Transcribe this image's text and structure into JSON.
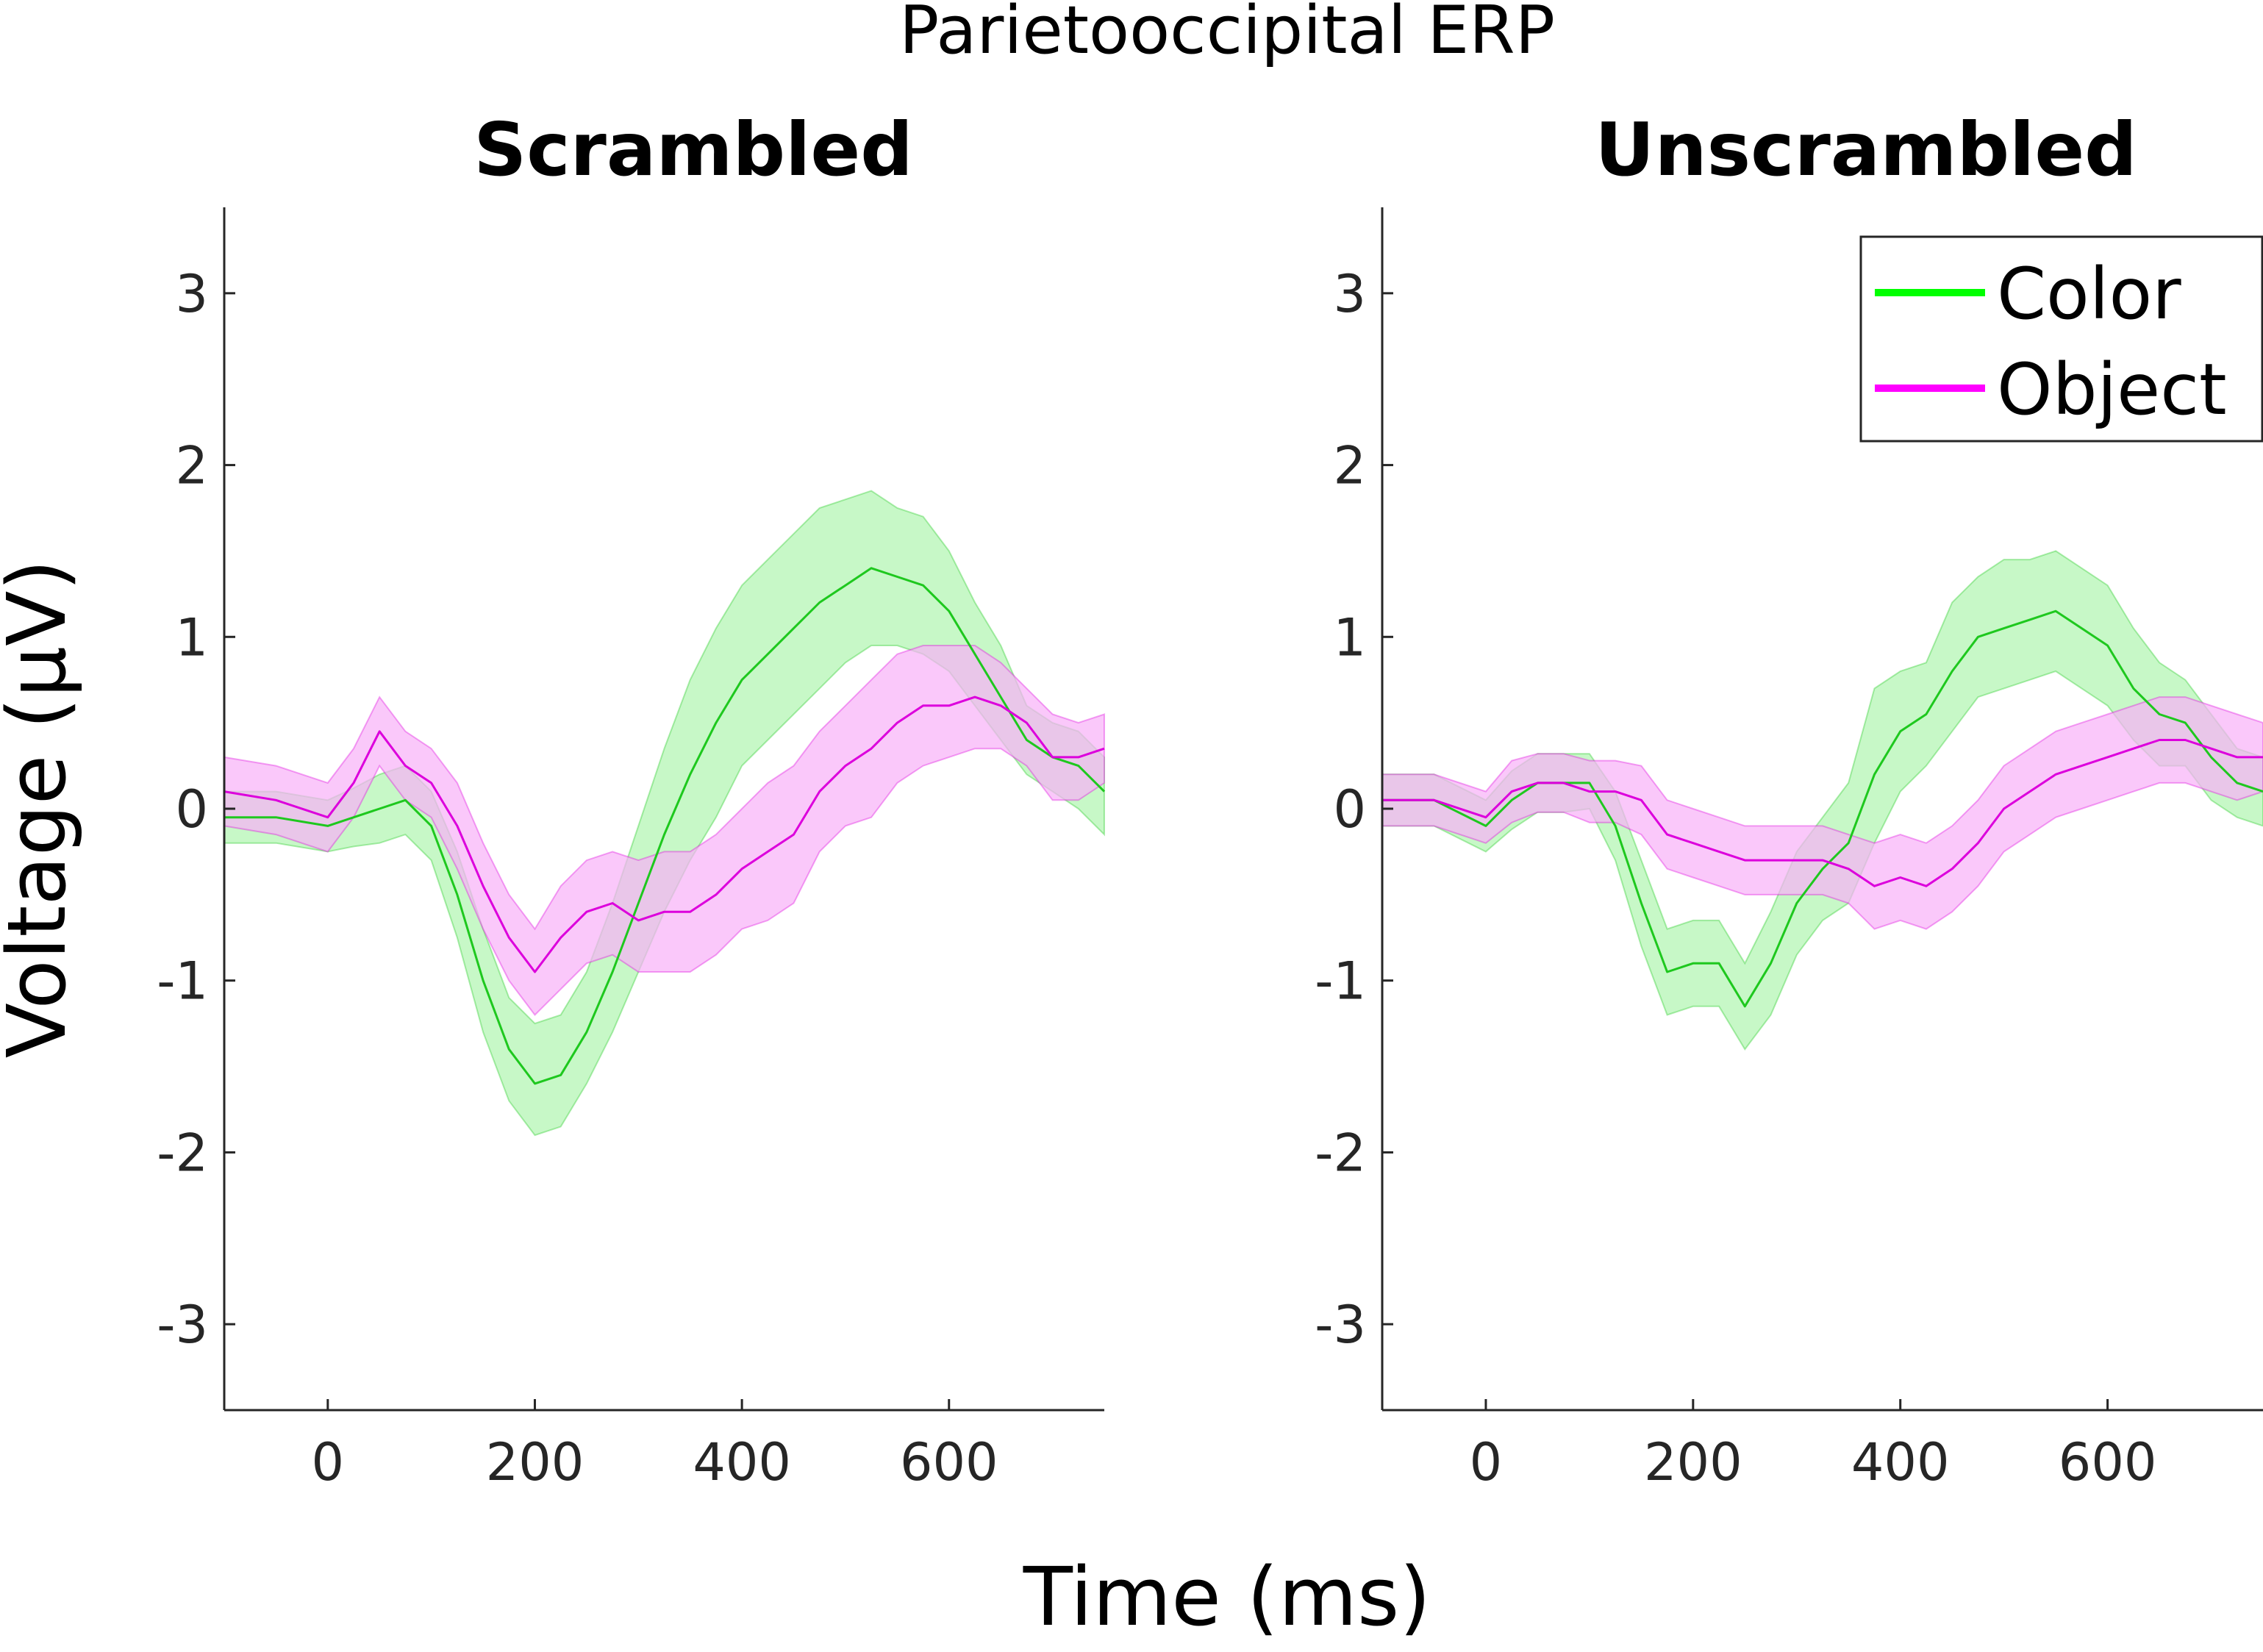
{
  "figure": {
    "title": "Parietooccipital ERP",
    "xlabel": "Time (ms)",
    "ylabel": "Voltage (μV)"
  },
  "legend": {
    "placement": "top-right of right panel",
    "entries": [
      {
        "label": "Color",
        "color": "#00ff00"
      },
      {
        "label": "Object",
        "color": "#ff00ff"
      }
    ]
  },
  "colors": {
    "color_line": "#1ec81e",
    "color_band": "#b4f5b4",
    "object_line": "#dc00dc",
    "object_band": "#f8b0f8",
    "overlap_band": "#cdd0cd"
  },
  "chart_data": [
    {
      "type": "line",
      "title": "Scrambled",
      "xlim": [
        -100,
        750
      ],
      "ylim": [
        -3.5,
        3.5
      ],
      "xticks": [
        0,
        200,
        400,
        600
      ],
      "yticks": [
        -3,
        -2,
        -1,
        0,
        1,
        2,
        3
      ],
      "x": [
        -100,
        -50,
        0,
        25,
        50,
        75,
        100,
        125,
        150,
        175,
        200,
        225,
        250,
        275,
        300,
        325,
        350,
        375,
        400,
        425,
        450,
        475,
        500,
        525,
        550,
        575,
        600,
        625,
        650,
        675,
        700,
        725,
        750
      ],
      "series": [
        {
          "name": "Color",
          "mean": [
            -0.05,
            -0.05,
            -0.1,
            -0.05,
            0.0,
            0.05,
            -0.1,
            -0.5,
            -1.0,
            -1.4,
            -1.6,
            -1.55,
            -1.3,
            -0.95,
            -0.55,
            -0.15,
            0.2,
            0.5,
            0.75,
            0.9,
            1.05,
            1.2,
            1.3,
            1.4,
            1.35,
            1.3,
            1.15,
            0.9,
            0.65,
            0.4,
            0.3,
            0.25,
            0.1
          ],
          "upper": [
            0.1,
            0.1,
            0.05,
            0.12,
            0.2,
            0.25,
            0.1,
            -0.25,
            -0.7,
            -1.1,
            -1.25,
            -1.2,
            -0.95,
            -0.55,
            -0.1,
            0.35,
            0.75,
            1.05,
            1.3,
            1.45,
            1.6,
            1.75,
            1.8,
            1.85,
            1.75,
            1.7,
            1.5,
            1.2,
            0.95,
            0.6,
            0.5,
            0.45,
            0.3
          ],
          "lower": [
            -0.2,
            -0.2,
            -0.25,
            -0.22,
            -0.2,
            -0.15,
            -0.3,
            -0.75,
            -1.3,
            -1.7,
            -1.9,
            -1.85,
            -1.6,
            -1.3,
            -0.95,
            -0.6,
            -0.3,
            -0.05,
            0.25,
            0.4,
            0.55,
            0.7,
            0.85,
            0.95,
            0.95,
            0.9,
            0.8,
            0.6,
            0.4,
            0.2,
            0.1,
            0.0,
            -0.15
          ]
        },
        {
          "name": "Object",
          "mean": [
            0.1,
            0.05,
            -0.05,
            0.15,
            0.45,
            0.25,
            0.15,
            -0.1,
            -0.45,
            -0.75,
            -0.95,
            -0.75,
            -0.6,
            -0.55,
            -0.65,
            -0.6,
            -0.6,
            -0.5,
            -0.35,
            -0.25,
            -0.15,
            0.1,
            0.25,
            0.35,
            0.5,
            0.6,
            0.6,
            0.65,
            0.6,
            0.5,
            0.3,
            0.3,
            0.35
          ],
          "upper": [
            0.3,
            0.25,
            0.15,
            0.35,
            0.65,
            0.45,
            0.35,
            0.15,
            -0.2,
            -0.5,
            -0.7,
            -0.45,
            -0.3,
            -0.25,
            -0.3,
            -0.25,
            -0.25,
            -0.15,
            0.0,
            0.15,
            0.25,
            0.45,
            0.6,
            0.75,
            0.9,
            0.95,
            0.95,
            0.95,
            0.85,
            0.7,
            0.55,
            0.5,
            0.55
          ],
          "lower": [
            -0.1,
            -0.15,
            -0.25,
            -0.05,
            0.25,
            0.05,
            -0.05,
            -0.35,
            -0.7,
            -1.0,
            -1.2,
            -1.05,
            -0.9,
            -0.85,
            -0.95,
            -0.95,
            -0.95,
            -0.85,
            -0.7,
            -0.65,
            -0.55,
            -0.25,
            -0.1,
            -0.05,
            0.15,
            0.25,
            0.3,
            0.35,
            0.35,
            0.25,
            0.05,
            0.05,
            0.15
          ]
        }
      ]
    },
    {
      "type": "line",
      "title": "Unscrambled",
      "xlim": [
        -100,
        750
      ],
      "ylim": [
        -3.5,
        3.5
      ],
      "xticks": [
        0,
        200,
        400,
        600
      ],
      "yticks": [
        -3,
        -2,
        -1,
        0,
        1,
        2,
        3
      ],
      "x": [
        -100,
        -50,
        0,
        25,
        50,
        75,
        100,
        125,
        150,
        175,
        200,
        225,
        250,
        275,
        300,
        325,
        350,
        375,
        400,
        425,
        450,
        475,
        500,
        525,
        550,
        575,
        600,
        625,
        650,
        675,
        700,
        725,
        750
      ],
      "series": [
        {
          "name": "Color",
          "mean": [
            0.05,
            0.05,
            -0.1,
            0.05,
            0.15,
            0.15,
            0.15,
            -0.1,
            -0.55,
            -0.95,
            -0.9,
            -0.9,
            -1.15,
            -0.9,
            -0.55,
            -0.35,
            -0.2,
            0.2,
            0.45,
            0.55,
            0.8,
            1.0,
            1.05,
            1.1,
            1.15,
            1.05,
            0.95,
            0.7,
            0.55,
            0.5,
            0.3,
            0.15,
            0.1
          ],
          "upper": [
            0.2,
            0.2,
            0.05,
            0.22,
            0.32,
            0.32,
            0.32,
            0.1,
            -0.3,
            -0.7,
            -0.65,
            -0.65,
            -0.9,
            -0.6,
            -0.25,
            -0.05,
            0.15,
            0.7,
            0.8,
            0.85,
            1.2,
            1.35,
            1.45,
            1.45,
            1.5,
            1.4,
            1.3,
            1.05,
            0.85,
            0.75,
            0.55,
            0.35,
            0.3
          ],
          "lower": [
            -0.1,
            -0.1,
            -0.25,
            -0.12,
            -0.02,
            -0.02,
            0.0,
            -0.3,
            -0.8,
            -1.2,
            -1.15,
            -1.15,
            -1.4,
            -1.2,
            -0.85,
            -0.65,
            -0.55,
            -0.2,
            0.1,
            0.25,
            0.45,
            0.65,
            0.7,
            0.75,
            0.8,
            0.7,
            0.6,
            0.4,
            0.25,
            0.25,
            0.05,
            -0.05,
            -0.1
          ]
        },
        {
          "name": "Object",
          "mean": [
            0.05,
            0.05,
            -0.05,
            0.1,
            0.15,
            0.15,
            0.1,
            0.1,
            0.05,
            -0.15,
            -0.2,
            -0.25,
            -0.3,
            -0.3,
            -0.3,
            -0.3,
            -0.35,
            -0.45,
            -0.4,
            -0.45,
            -0.35,
            -0.2,
            0.0,
            0.1,
            0.2,
            0.25,
            0.3,
            0.35,
            0.4,
            0.4,
            0.35,
            0.3,
            0.3
          ],
          "upper": [
            0.2,
            0.2,
            0.1,
            0.28,
            0.32,
            0.32,
            0.28,
            0.28,
            0.25,
            0.05,
            0.0,
            -0.05,
            -0.1,
            -0.1,
            -0.1,
            -0.1,
            -0.15,
            -0.2,
            -0.15,
            -0.2,
            -0.1,
            0.05,
            0.25,
            0.35,
            0.45,
            0.5,
            0.55,
            0.6,
            0.65,
            0.65,
            0.6,
            0.55,
            0.5
          ],
          "lower": [
            -0.1,
            -0.1,
            -0.2,
            -0.08,
            -0.02,
            -0.02,
            -0.08,
            -0.08,
            -0.15,
            -0.35,
            -0.4,
            -0.45,
            -0.5,
            -0.5,
            -0.5,
            -0.5,
            -0.55,
            -0.7,
            -0.65,
            -0.7,
            -0.6,
            -0.45,
            -0.25,
            -0.15,
            -0.05,
            0.0,
            0.05,
            0.1,
            0.15,
            0.15,
            0.1,
            0.05,
            0.1
          ]
        }
      ]
    }
  ]
}
